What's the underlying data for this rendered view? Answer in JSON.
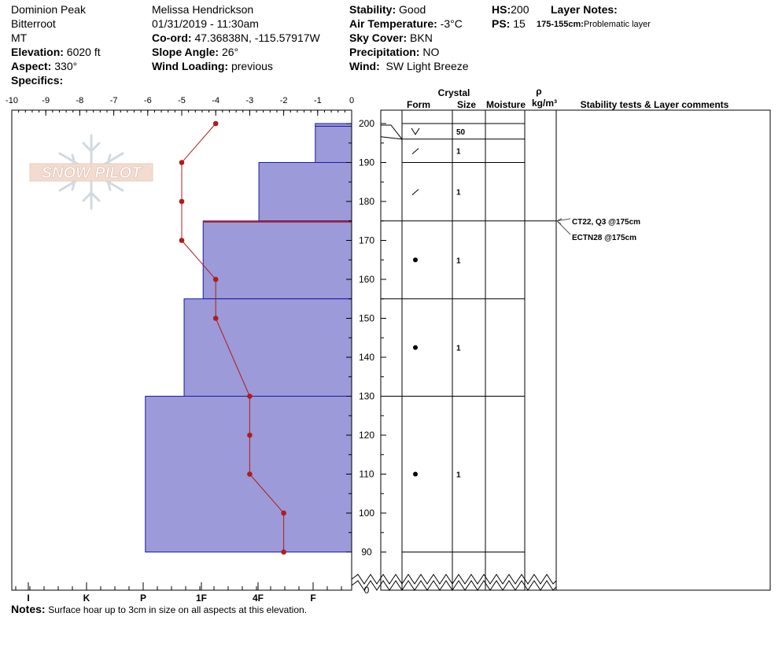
{
  "header": {
    "location": "Dominion Peak",
    "range": "Bitterroot",
    "state": "MT",
    "elevation_label": "Elevation:",
    "elevation": "6020 ft",
    "aspect_label": "Aspect:",
    "aspect": "330°",
    "specifics_label": "Specifics:",
    "observer": "Melissa Hendrickson",
    "datetime": "01/31/2019 - 11:30am",
    "coord_label": "Co-ord:",
    "coord": "47.36838N, -115.57917W",
    "slope_label": "Slope Angle:",
    "slope": "26°",
    "wind_loading_label": "Wind Loading:",
    "wind_loading": "previous",
    "stability_label": "Stability:",
    "stability": "Good",
    "air_temp_label": "Air Temperature:",
    "air_temp": "-3°C",
    "sky_label": "Sky Cover:",
    "sky": "BKN",
    "precip_label": "Precipitation:",
    "precip": "NO",
    "wind_label": "Wind:",
    "wind": "SW Light Breeze",
    "hs_label": "HS:",
    "hs": "200",
    "ps_label": "PS:",
    "ps": "15",
    "layer_notes_label": "Layer Notes:",
    "layer_note_range": "175-155cm:",
    "layer_note_text": "Problematic layer"
  },
  "watermark": "SNOW PILOT",
  "columns": {
    "crystal": "Crystal",
    "form": "Form",
    "size": "Size",
    "moisture": "Moisture",
    "rho": "ρ",
    "density_unit": "kg/m³",
    "stability": "Stability tests & Layer comments"
  },
  "chart_data": {
    "type": "snow_profile",
    "temp_axis": {
      "ticks": [
        "-10",
        "-9",
        "-8",
        "-7",
        "-6",
        "-5",
        "-4",
        "-3",
        "-2",
        "-1",
        "0"
      ],
      "range": [
        -10,
        0
      ]
    },
    "hardness_axis": {
      "ticks": [
        "I",
        "K",
        "P",
        "1F",
        "4F",
        "F"
      ]
    },
    "height_ticks": [
      "200",
      "190",
      "180",
      "170",
      "160",
      "150",
      "140",
      "130",
      "120",
      "110",
      "100",
      "90",
      "0"
    ],
    "height_range": [
      85,
      201
    ],
    "temperature_profile": [
      {
        "height": 200,
        "temp": -4
      },
      {
        "height": 190,
        "temp": -5
      },
      {
        "height": 180,
        "temp": -5
      },
      {
        "height": 170,
        "temp": -5
      },
      {
        "height": 160,
        "temp": -4
      },
      {
        "height": 150,
        "temp": -4
      },
      {
        "height": 130,
        "temp": -3
      },
      {
        "height": 120,
        "temp": -3
      },
      {
        "height": 110,
        "temp": -3
      },
      {
        "height": 100,
        "temp": -2
      },
      {
        "height": 90,
        "temp": -2
      }
    ],
    "hardness_layers": [
      {
        "top": 200,
        "bottom": 199.3,
        "hardness": 1.07
      },
      {
        "top": 199.3,
        "bottom": 190,
        "hardness": 1.07
      },
      {
        "top": 190,
        "bottom": 175,
        "hardness": 2.73
      },
      {
        "top": 175,
        "bottom": 155,
        "hardness": 4.37
      },
      {
        "top": 155,
        "bottom": 130,
        "hardness": 4.93
      },
      {
        "top": 130,
        "bottom": 90,
        "hardness": 6.07
      }
    ],
    "crystal_layers": [
      {
        "top": 200,
        "bottom": 196,
        "form": "V",
        "size": "50"
      },
      {
        "top": 196,
        "bottom": 190,
        "form": "/",
        "size": "1"
      },
      {
        "top": 190,
        "bottom": 175,
        "form": "/",
        "size": "1"
      },
      {
        "top": 175,
        "bottom": 155,
        "form": "●",
        "size": "1"
      },
      {
        "top": 155,
        "bottom": 130,
        "form": "●",
        "size": "1"
      },
      {
        "top": 130,
        "bottom": 90,
        "form": "●",
        "size": "1"
      }
    ],
    "stability_tests": [
      {
        "height": 175,
        "text": "CT22, Q3 @175cm"
      },
      {
        "height": 175,
        "text": "ECTN28 @175cm"
      }
    ],
    "colors": {
      "hardness_fill": "#9c9ad8",
      "hardness_stroke": "#1a1aa8",
      "temperature": "#b01c1c",
      "weak_layer": "#b01c1c"
    }
  },
  "notes": {
    "label": "Notes:",
    "text": "Surface hoar up to 3cm in size on all aspects at this elevation."
  }
}
